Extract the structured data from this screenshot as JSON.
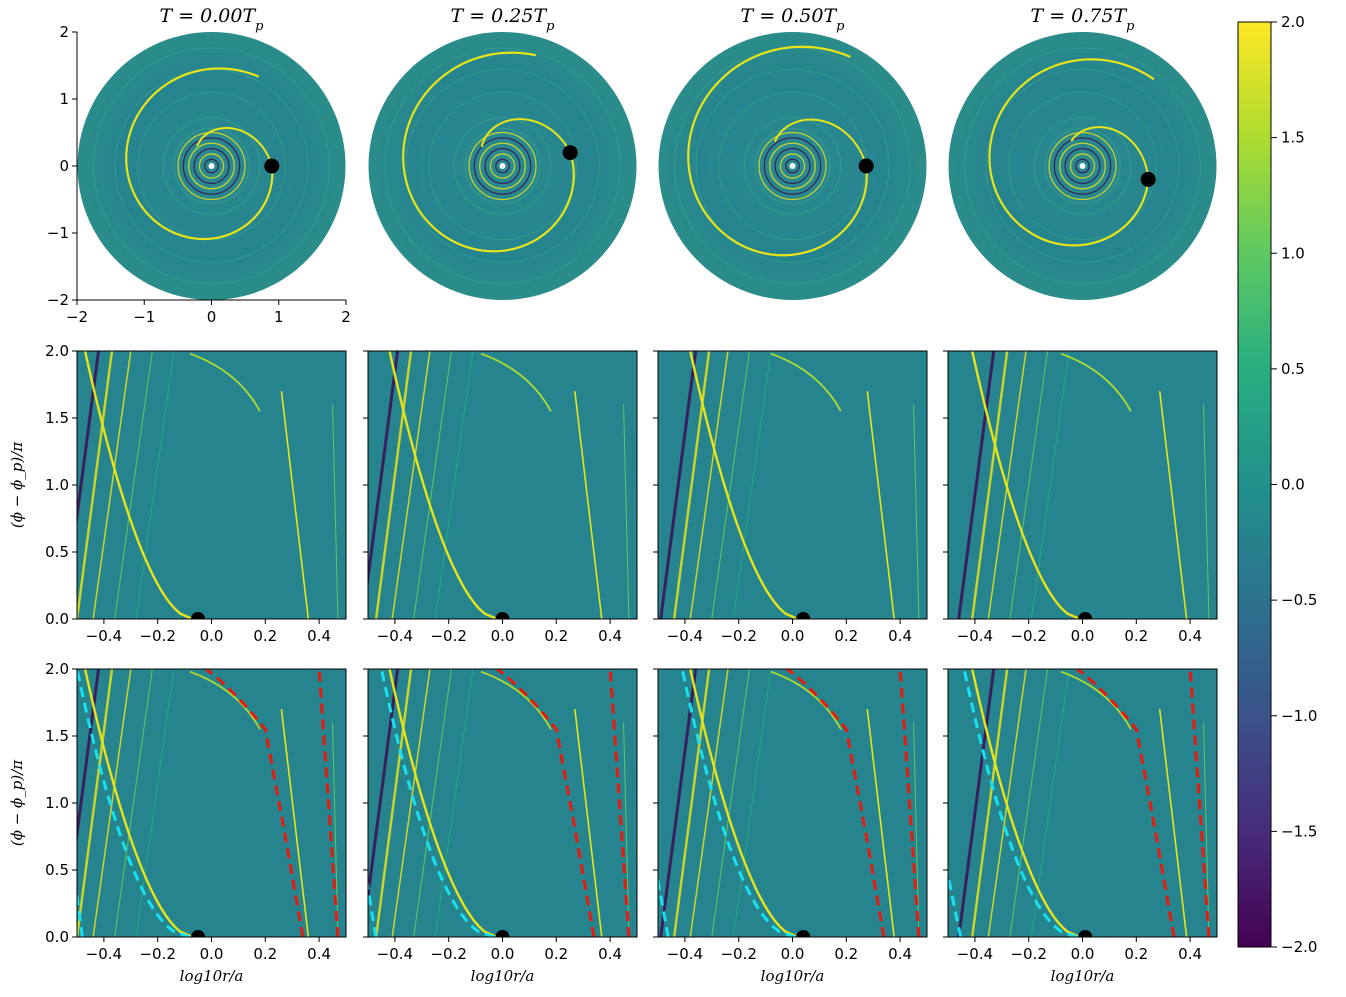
{
  "chart_data": [
    {
      "type": "heatmap",
      "panel": "polar-maps",
      "titles": [
        "T = 0.00T_p",
        "T = 0.25T_p",
        "T = 0.50T_p",
        "T = 0.75T_p"
      ],
      "x_ticks": [
        "−2",
        "−1",
        "0",
        "1",
        "2"
      ],
      "y_ticks": [
        "2",
        "1",
        "0",
        "−1",
        "−2"
      ],
      "xlim": [
        -2,
        2
      ],
      "ylim": [
        -2,
        2
      ],
      "planet_positions": [
        {
          "x": 0.9,
          "y": 0.0
        },
        {
          "x": 1.01,
          "y": 0.2
        },
        {
          "x": 1.1,
          "y": 0.0
        },
        {
          "x": 0.98,
          "y": -0.2
        }
      ]
    },
    {
      "type": "heatmap",
      "panel": "log-r-phi",
      "ylabel": "(ϕ − ϕ_p)/π",
      "x_ticks": [
        "−0.4",
        "−0.2",
        "0.0",
        "0.2",
        "0.4"
      ],
      "y_ticks": [
        "2.0",
        "1.5",
        "1.0",
        "0.5",
        "0.0"
      ],
      "xlim": [
        -0.5,
        0.5
      ],
      "ylim": [
        0,
        2
      ],
      "planet_log_r": [
        -0.05,
        0.0,
        0.04,
        0.01
      ]
    },
    {
      "type": "heatmap",
      "panel": "log-r-phi-with-wakes",
      "ylabel": "(ϕ − ϕ_p)/π",
      "xlabel": "log10r/a",
      "x_ticks": [
        "−0.4",
        "−0.2",
        "0.0",
        "0.2",
        "0.4"
      ],
      "y_ticks": [
        "2.0",
        "1.5",
        "1.0",
        "0.5",
        "0.0"
      ],
      "xlim": [
        -0.5,
        0.5
      ],
      "ylim": [
        0,
        2
      ],
      "planet_log_r": [
        -0.05,
        0.0,
        0.04,
        0.01
      ],
      "series": [
        {
          "name": "",
          "color": "#19e0ee"
        },
        {
          "name": "",
          "color": "#e51b10"
        }
      ]
    },
    {
      "type": "colorbar",
      "range": [
        -2.0,
        2.0
      ],
      "ticks": [
        "2.0",
        "1.5",
        "1.0",
        "0.5",
        "0.0",
        "−0.5",
        "−1.0",
        "−1.5",
        "−2.0"
      ],
      "colormap": "viridis"
    }
  ],
  "colors": {
    "background_teal": "#26848f",
    "bright_arm": "#e7e419",
    "dark_arm": "#3a0f55",
    "wake_inner": "#19e0ee",
    "wake_outer": "#e51b10",
    "planet": "#000000"
  }
}
